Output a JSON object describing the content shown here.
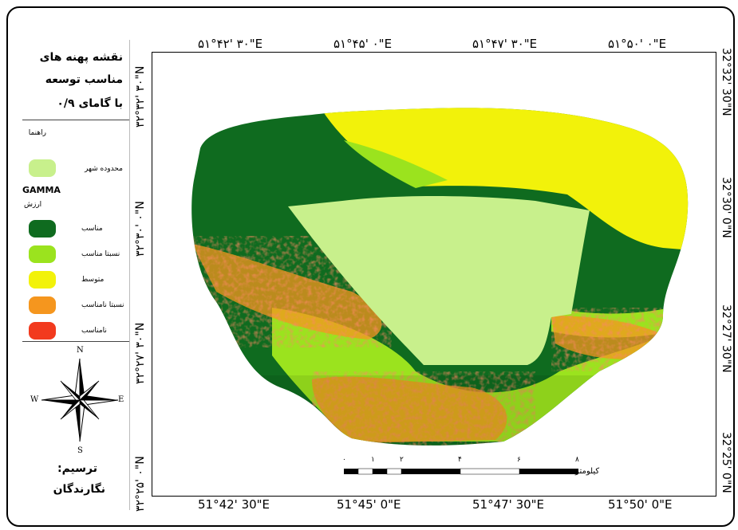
{
  "title": {
    "line1": "نقشه پهنه های",
    "line2": "مناسب توسعه",
    "line3": "با گامای ۰/۹"
  },
  "legend": {
    "heading": "راهنما",
    "boundary_label": "محدوده شهر",
    "boundary_color": "#c8f08c",
    "gamma_label": "GAMMA",
    "value_label": "ارزش",
    "classes": [
      {
        "label": "مناسب",
        "color": "#0f6b1f"
      },
      {
        "label": "نسبتا مناسب",
        "color": "#9be31e"
      },
      {
        "label": "متوسط",
        "color": "#f2f20a"
      },
      {
        "label": "نسبتا نامناسب",
        "color": "#f5961e"
      },
      {
        "label": "نامناسب",
        "color": "#f23a1e"
      }
    ]
  },
  "north_arrow": {
    "n": "N",
    "s": "S",
    "e": "E",
    "w": "W"
  },
  "credit": {
    "label": "ترسیم:",
    "author": "نگارندگان"
  },
  "top_coords": [
    "۵۱°۴۲' ۳۰\"E",
    "۵۱°۴۵' ۰\"E",
    "۵۱°۴۷' ۳۰\"E",
    "۵۱°۵۰' ۰\"E"
  ],
  "bottom_coords": [
    "51°42' 30\"E",
    "51°45' 0\"E",
    "51°47' 30\"E",
    "51°50' 0\"E"
  ],
  "left_coords": [
    "۳۲°۳۲' ۳۰\"N",
    "۳۲°۳۰' ۰\"N",
    "۳۲°۲۷' ۳۰\"N",
    "۳۲°۲۵' ۰\"N"
  ],
  "right_coords": [
    "32°32' 30\"N",
    "32°30' 0\"N",
    "32°27' 30\"N",
    "32°25' 0\"N"
  ],
  "scale_bar": {
    "ticks": [
      "۰",
      "۱",
      "۲",
      "۴",
      "۶",
      "۸"
    ],
    "unit": "کیلومتر"
  }
}
